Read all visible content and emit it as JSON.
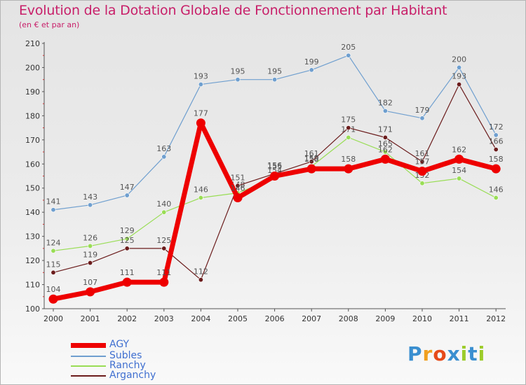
{
  "header": {
    "title": "Evolution de la Dotation Globale de Fonctionnement par Habitant",
    "subtitle": "(en € et par an)"
  },
  "colors": {
    "title": "#c81f69",
    "legend_text": "#3f6fd0",
    "axis": "#555555"
  },
  "chart_data": {
    "type": "line",
    "title": "Evolution de la Dotation Globale de Fonctionnement par Habitant",
    "subtitle": "(en € et par an)",
    "xlabel": "",
    "ylabel": "",
    "ylim": [
      100,
      210
    ],
    "yticks": [
      100,
      110,
      120,
      130,
      140,
      150,
      160,
      170,
      180,
      190,
      200,
      210
    ],
    "categories": [
      "2000",
      "2001",
      "2002",
      "2003",
      "2004",
      "2005",
      "2006",
      "2007",
      "2008",
      "2009",
      "2010",
      "2011",
      "2012"
    ],
    "grid": false,
    "legend_position": "bottom-left",
    "series": [
      {
        "name": "Subles",
        "color": "#6f9fcf",
        "values": [
          141,
          143,
          147,
          163,
          193,
          195,
          195,
          199,
          205,
          182,
          179,
          200,
          172
        ],
        "labels": [
          "141",
          "143",
          "147",
          "163",
          "193",
          "195",
          "195",
          "199",
          "205",
          "182",
          "179",
          "200",
          "172"
        ]
      },
      {
        "name": "Ranchy",
        "color": "#99dd55",
        "values": [
          124,
          126,
          129,
          140,
          146,
          148,
          154,
          159,
          171,
          165,
          152,
          154,
          146
        ],
        "labels": [
          "124",
          "126",
          "129",
          "140",
          "146",
          "148",
          "154",
          "159",
          "171",
          "165",
          "152",
          "154",
          "146"
        ]
      },
      {
        "name": "Arganchy",
        "color": "#6b1c1c",
        "values": [
          115,
          119,
          125,
          125,
          112,
          151,
          156,
          161,
          175,
          171,
          161,
          193,
          166
        ],
        "labels": [
          "115",
          "119",
          "125",
          "125",
          "112",
          "151",
          "156",
          "161",
          "175",
          "171",
          "161",
          "193",
          "166"
        ]
      },
      {
        "name": "AGY",
        "color": "#ee0000",
        "values": [
          104,
          107,
          111,
          111,
          177,
          146,
          155,
          158,
          158,
          162,
          157,
          162,
          158
        ],
        "labels": [
          "104",
          "107",
          "111",
          "111",
          "177",
          "146",
          "155",
          "158",
          "158",
          "162",
          "157",
          "162",
          "158"
        ]
      }
    ]
  },
  "legend": {
    "items": [
      {
        "label": "AGY",
        "color": "#ee0000"
      },
      {
        "label": "Subles",
        "color": "#6f9fcf"
      },
      {
        "label": "Ranchy",
        "color": "#99dd55"
      },
      {
        "label": "Arganchy",
        "color": "#6b1c1c"
      }
    ]
  },
  "logo": {
    "letters": [
      "P",
      "r",
      "o",
      "x",
      "i",
      "t",
      "i"
    ],
    "colors": [
      "#3a8fd0",
      "#f0a020",
      "#e64a19",
      "#3a8fd0",
      "#9ccc2a",
      "#3a8fd0",
      "#9ccc2a"
    ],
    "alt": "Proxiti"
  }
}
